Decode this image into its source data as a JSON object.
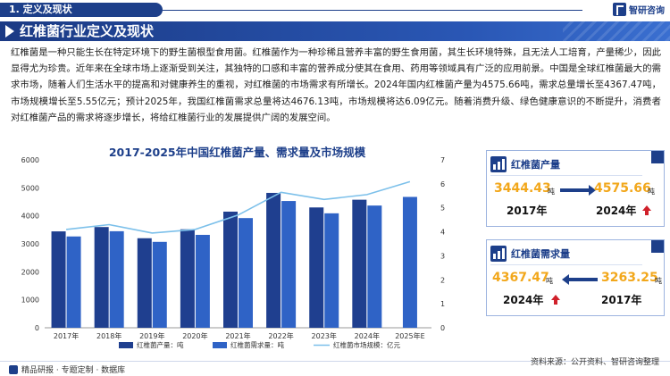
{
  "header": {
    "section": "1. 定义及现状",
    "logo_text": "智研咨询",
    "title": "红椎菌行业定义及现状"
  },
  "paragraph": "红椎菌是一种只能生长在特定环境下的野生菌根型食用菌。红椎菌作为一种珍稀且营养丰富的野生食用菌，其生长环境特殊，且无法人工培育，产量稀少，因此显得尤为珍贵。近年来在全球市场上逐渐受到关注，其独特的口感和丰富的营养成分使其在食用、药用等领域具有广泛的应用前景。中国是全球红椎菌最大的需求市场，随着人们生活水平的提高和对健康养生的重视，对红椎菌的市场需求有所增长。2024年国内红椎菌产量为4575.66吨，需求总量增长至4367.47吨，市场规模增长至5.55亿元；预计2025年，我国红椎菌需求总量将达4676.13吨，市场规模将达6.09亿元。随着消费升级、绿色健康意识的不断提升，消费者对红椎菌产品的需求将逐步增长，将给红椎菌行业的发展提供广阔的发展空间。",
  "cards": {
    "production": {
      "label": "红椎菌产量",
      "left_value": "3444.43",
      "left_unit": "吨",
      "left_year": "2017年",
      "right_value": "4575.66",
      "right_unit": "吨",
      "right_year": "2024年"
    },
    "demand": {
      "label": "红椎菌需求量",
      "left_value": "4367.47",
      "left_unit": "吨",
      "left_year": "2024年",
      "right_value": "3263.25",
      "right_unit": "吨",
      "right_year": "2017年"
    }
  },
  "footer": {
    "left": "精品研报 · 专题定制 · 数据库",
    "source": "资料来源：公开资料、智研咨询整理"
  },
  "colors": {
    "primary": "#1d3f8a",
    "bar_production": "#1f3f8f",
    "bar_demand": "#2f63c6",
    "line_market": "#7cc0ea",
    "highlight": "#f2a71b",
    "up_arrow": "#d0202a"
  },
  "chart_data": {
    "type": "bar",
    "title": "2017-2025年中国红椎菌产量、需求量及市场规模",
    "categories": [
      "2017年",
      "2018年",
      "2019年",
      "2020年",
      "2021年",
      "2022年",
      "2023年",
      "2024年",
      "2025年E"
    ],
    "series": [
      {
        "name": "红椎菌产量：吨",
        "type": "bar",
        "axis": "left",
        "values": [
          3444.43,
          3600,
          3200,
          3520,
          4150,
          4820,
          4300,
          4575.66,
          null
        ]
      },
      {
        "name": "红椎菌需求量：吨",
        "type": "bar",
        "axis": "left",
        "values": [
          3263.25,
          3450,
          3070,
          3320,
          3920,
          4530,
          4090,
          4367.47,
          4676.13
        ]
      },
      {
        "name": "红椎菌市场规模：亿元",
        "type": "line",
        "axis": "right",
        "values": [
          4.1,
          4.3,
          3.95,
          4.1,
          4.7,
          5.65,
          5.35,
          5.55,
          6.09
        ]
      }
    ],
    "y_left": {
      "min": 0,
      "max": 6000,
      "ticks": [
        0,
        1000,
        2000,
        3000,
        4000,
        5000,
        6000
      ]
    },
    "y_right": {
      "min": 0,
      "max": 7,
      "ticks": [
        0,
        1,
        2,
        3,
        4,
        5,
        6,
        7
      ]
    },
    "legend_position": "bottom",
    "grid": false
  }
}
